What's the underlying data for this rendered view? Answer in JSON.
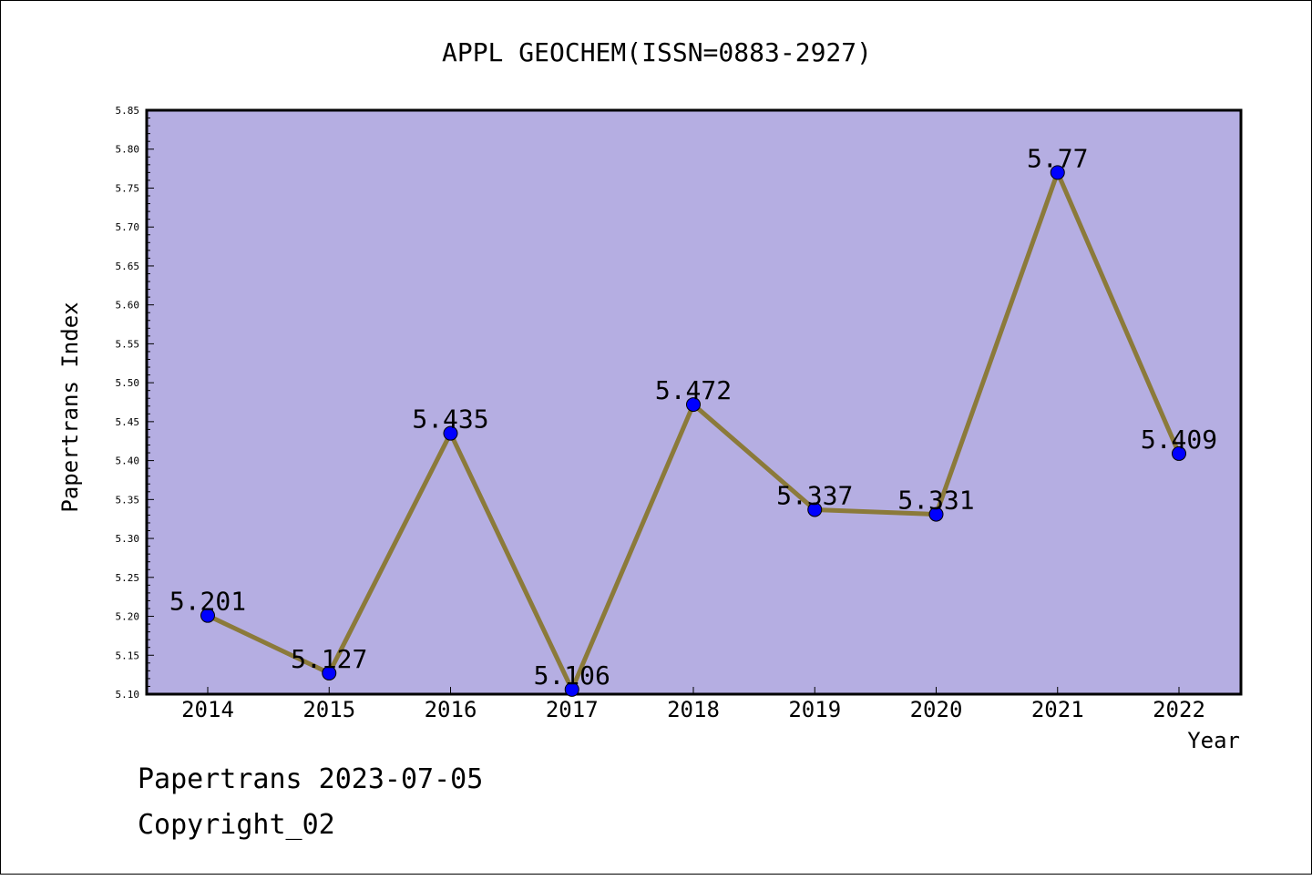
{
  "chart_data": {
    "type": "line",
    "title": "APPL GEOCHEM(ISSN=0883-2927)",
    "xlabel": "Year",
    "ylabel": "Papertrans Index",
    "categories": [
      "2014",
      "2015",
      "2016",
      "2017",
      "2018",
      "2019",
      "2020",
      "2021",
      "2022"
    ],
    "series": [
      {
        "values": [
          5.201,
          5.127,
          5.435,
          5.106,
          5.472,
          5.337,
          5.331,
          5.77,
          5.409
        ]
      }
    ],
    "data_labels": [
      "5.201",
      "5.127",
      "5.435",
      "5.106",
      "5.472",
      "5.337",
      "5.331",
      "5.77",
      "5.409"
    ],
    "ylim": [
      5.1,
      5.85
    ],
    "yticks": [
      "5.10",
      "5.15",
      "5.20",
      "5.25",
      "5.30",
      "5.35",
      "5.40",
      "5.45",
      "5.50",
      "5.55",
      "5.60",
      "5.65",
      "5.70",
      "5.75",
      "5.80",
      "5.85"
    ],
    "grid": false,
    "colors": {
      "plot_background": "#b5aee2",
      "line": "#8b7a3a",
      "marker": "#0000ff"
    }
  },
  "footer": {
    "line1": "Papertrans 2023-07-05",
    "line2": "Copyright_02"
  }
}
